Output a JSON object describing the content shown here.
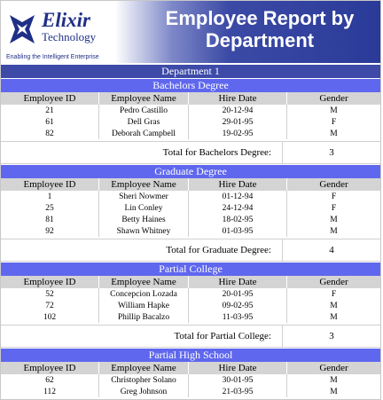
{
  "header": {
    "logo_name": "Elixir",
    "logo_sub": "Technology",
    "logo_tagline": "Enabling the Intelligent Enterprise",
    "title_line1": "Employee Report by",
    "title_line2": "Department"
  },
  "columns": [
    "Employee ID",
    "Employee Name",
    "Hire Date",
    "Gender"
  ],
  "department": {
    "label": "Department 1"
  },
  "groups": [
    {
      "name": "Bachelors Degree",
      "rows": [
        [
          "21",
          "Pedro Castillo",
          "20-12-94",
          "M"
        ],
        [
          "61",
          "Dell Gras",
          "29-01-95",
          "F"
        ],
        [
          "82",
          "Deborah Campbell",
          "19-02-95",
          "M"
        ]
      ],
      "total_label": "Total for Bachelors Degree:",
      "total_value": "3"
    },
    {
      "name": "Graduate Degree",
      "rows": [
        [
          "1",
          "Sheri Nowmer",
          "01-12-94",
          "F"
        ],
        [
          "25",
          "Lin Conley",
          "24-12-94",
          "F"
        ],
        [
          "81",
          "Betty Haines",
          "18-02-95",
          "M"
        ],
        [
          "92",
          "Shawn Whitney",
          "01-03-95",
          "M"
        ]
      ],
      "total_label": "Total for Graduate Degree:",
      "total_value": "4"
    },
    {
      "name": "Partial College",
      "rows": [
        [
          "52",
          "Concepcion Lozada",
          "20-01-95",
          "F"
        ],
        [
          "72",
          "William Hapke",
          "09-02-95",
          "M"
        ],
        [
          "102",
          "Phillip Bacalzo",
          "11-03-95",
          "M"
        ]
      ],
      "total_label": "Total for Partial College:",
      "total_value": "3"
    },
    {
      "name": "Partial High School",
      "rows": [
        [
          "62",
          "Christopher Solano",
          "30-01-95",
          "M"
        ],
        [
          "112",
          "Greg Johnson",
          "21-03-95",
          "M"
        ]
      ]
    }
  ]
}
